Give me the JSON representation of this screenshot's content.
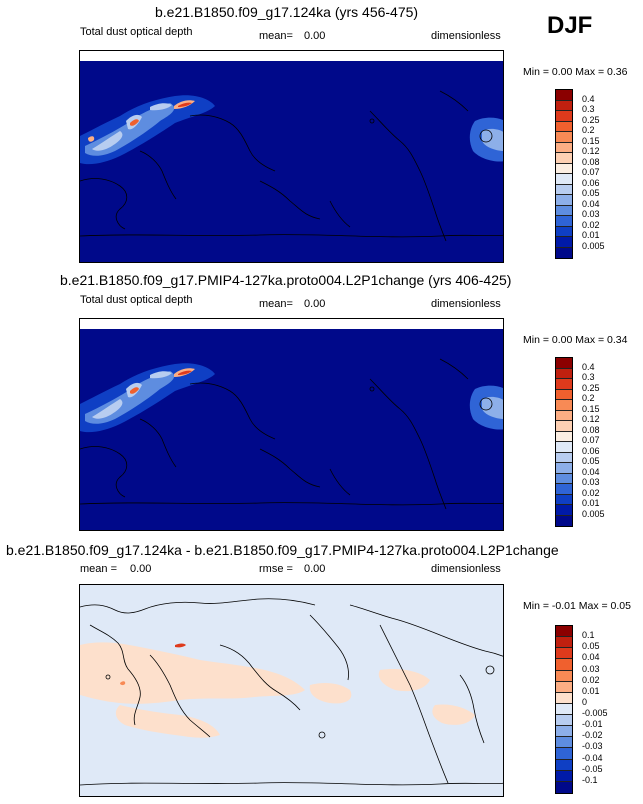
{
  "season": "DJF",
  "panels": [
    {
      "title": "b.e21.B1850.f09_g17.124ka (yrs 456-475)",
      "left_label": "Total dust optical depth",
      "mean_label": "mean=",
      "mean_value": "0.00",
      "units": "dimensionless",
      "minmax": "Min =  0.00 Max =  0.36",
      "colorbar": {
        "labels": [
          "0.4",
          "0.3",
          "0.25",
          "0.2",
          "0.15",
          "0.12",
          "0.08",
          "0.07",
          "0.06",
          "0.05",
          "0.04",
          "0.03",
          "0.02",
          "0.01",
          "0.005"
        ],
        "colors": [
          "#8b0000",
          "#c0200f",
          "#de3a1c",
          "#f0602e",
          "#f88a55",
          "#fcae84",
          "#fdd0b3",
          "#fbeee2",
          "#dfe9f7",
          "#b8cdf0",
          "#8dafe9",
          "#5e8de0",
          "#2f64d6",
          "#0f3fc4",
          "#001aa8",
          "#00098a"
        ]
      }
    },
    {
      "title": "b.e21.B1850.f09_g17.PMIP4-127ka.proto004.L2P1change (yrs 406-425)",
      "left_label": "Total dust optical depth",
      "mean_label": "mean=",
      "mean_value": "0.00",
      "units": "dimensionless",
      "minmax": "Min =  0.00 Max =  0.34",
      "colorbar": {
        "labels": [
          "0.4",
          "0.3",
          "0.25",
          "0.2",
          "0.15",
          "0.12",
          "0.08",
          "0.07",
          "0.06",
          "0.05",
          "0.04",
          "0.03",
          "0.02",
          "0.01",
          "0.005"
        ],
        "colors": [
          "#8b0000",
          "#c0200f",
          "#de3a1c",
          "#f0602e",
          "#f88a55",
          "#fcae84",
          "#fdd0b3",
          "#fbeee2",
          "#dfe9f7",
          "#b8cdf0",
          "#8dafe9",
          "#5e8de0",
          "#2f64d6",
          "#0f3fc4",
          "#001aa8",
          "#00098a"
        ]
      }
    },
    {
      "title": "b.e21.B1850.f09_g17.124ka - b.e21.B1850.f09_g17.PMIP4-127ka.proto004.L2P1change",
      "mean_label": "mean =",
      "mean_value": "0.00",
      "rmse_label": "rmse =",
      "rmse_value": "0.00",
      "units": "dimensionless",
      "minmax": "Min =  -0.01 Max =  0.05",
      "colorbar": {
        "labels": [
          "0.1",
          "0.05",
          "0.04",
          "0.03",
          "0.02",
          "0.01",
          "0",
          "-0.005",
          "-0.01",
          "-0.02",
          "-0.03",
          "-0.04",
          "-0.05",
          "-0.1"
        ],
        "colors": [
          "#8b0000",
          "#c0200f",
          "#de3a1c",
          "#f0602e",
          "#f88a55",
          "#fcae84",
          "#fde0cc",
          "#dfe9f7",
          "#b8cdf0",
          "#8dafe9",
          "#5e8de0",
          "#2f64d6",
          "#0f3fc4",
          "#001aa8",
          "#00098a"
        ]
      }
    }
  ],
  "chart_data": [
    {
      "type": "heatmap",
      "title": "b.e21.B1850.f09_g17.124ka (yrs 456-475)",
      "variable": "Total dust optical depth",
      "mean": 0.0,
      "min": 0.0,
      "max": 0.36,
      "units": "dimensionless",
      "season": "DJF"
    },
    {
      "type": "heatmap",
      "title": "b.e21.B1850.f09_g17.PMIP4-127ka.proto004.L2P1change (yrs 406-425)",
      "variable": "Total dust optical depth",
      "mean": 0.0,
      "min": 0.0,
      "max": 0.34,
      "units": "dimensionless",
      "season": "DJF"
    },
    {
      "type": "heatmap",
      "title": "b.e21.B1850.f09_g17.124ka - b.e21.B1850.f09_g17.PMIP4-127ka.proto004.L2P1change",
      "mean": 0.0,
      "rmse": 0.0,
      "min": -0.01,
      "max": 0.05,
      "units": "dimensionless",
      "season": "DJF"
    }
  ]
}
